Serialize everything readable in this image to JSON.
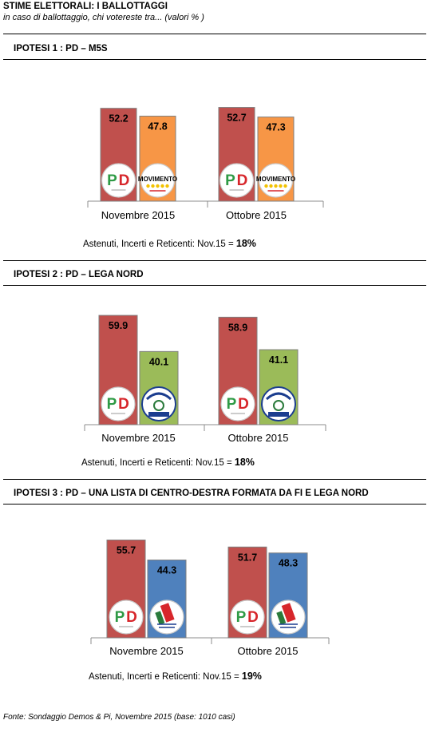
{
  "header": {
    "title": "STIME ELETTORALI:  I BALLOTTAGGI",
    "subtitle": "in caso di ballottaggio, chi votereste tra... (valori % )"
  },
  "colors": {
    "pd_bar": "#c0504d",
    "m5s_bar": "#f79646",
    "lega_bar": "#9bbb59",
    "cdx_bar": "#4f81bd",
    "pd_logo_green": "#2e9a45",
    "pd_logo_red": "#d7262b",
    "m5s_star": "#f2c200",
    "lega_green": "#2a7a3b",
    "lega_blue": "#1b3d8f",
    "fi_red": "#d7262b"
  },
  "footer": {
    "source": "Fonte: Sondaggio Demos & Pi, Novembre 2015 (base: 1010 casi)"
  },
  "chart_data": [
    {
      "type": "bar",
      "title": "IPOTESI 1 : PD – M5S",
      "categories": [
        "Novembre 2015",
        "Ottobre 2015"
      ],
      "series": [
        {
          "logo": "pd-logo",
          "color": "#c0504d",
          "values": [
            52.2,
            52.7
          ]
        },
        {
          "logo": "m5s-logo",
          "color": "#f79646",
          "values": [
            47.8,
            47.3
          ]
        }
      ],
      "ylim": [
        0,
        70
      ],
      "note": {
        "text": "Astenuti, Incerti e Reticenti: Nov.15 = ",
        "value": "18%"
      }
    },
    {
      "type": "bar",
      "title": "IPOTESI 2 : PD – LEGA NORD",
      "categories": [
        "Novembre 2015",
        "Ottobre 2015"
      ],
      "series": [
        {
          "logo": "pd-logo",
          "color": "#c0504d",
          "values": [
            59.9,
            58.9
          ]
        },
        {
          "logo": "lega-logo",
          "color": "#9bbb59",
          "values": [
            40.1,
            41.1
          ]
        }
      ],
      "ylim": [
        0,
        70
      ],
      "note": {
        "text": "Astenuti, Incerti e Reticenti: Nov.15 = ",
        "value": "18%"
      }
    },
    {
      "type": "bar",
      "title": "IPOTESI 3 : PD – UNA LISTA DI CENTRO-DESTRA FORMATA DA FI E LEGA NORD",
      "categories": [
        "Novembre 2015",
        "Ottobre 2015"
      ],
      "series": [
        {
          "logo": "pd-logo",
          "color": "#c0504d",
          "values": [
            55.7,
            51.7
          ]
        },
        {
          "logo": "fi-lega-logo",
          "color": "#4f81bd",
          "values": [
            44.3,
            48.3
          ]
        }
      ],
      "ylim": [
        0,
        70
      ],
      "note": {
        "text": "Astenuti, Incerti e Reticenti: Nov.15 = ",
        "value": "19%"
      }
    }
  ]
}
